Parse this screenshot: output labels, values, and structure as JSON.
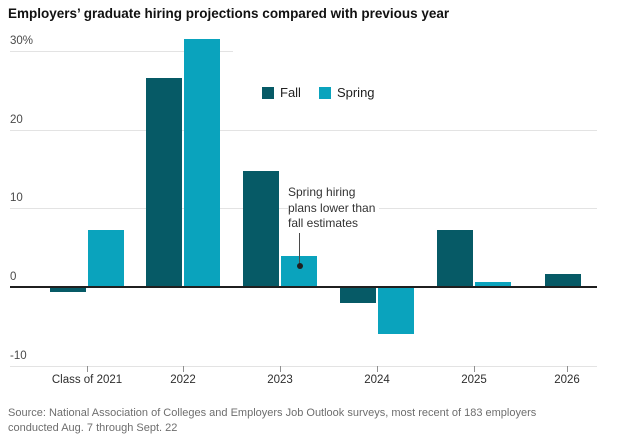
{
  "title": "Employers’ graduate hiring projections compared with previous year",
  "legend": {
    "fall_label": "Fall",
    "spring_label": "Spring"
  },
  "colors": {
    "fall": "#065a66",
    "spring": "#0aa3bd",
    "grid": "#e3e3e3",
    "zero_axis": "#1f1f1f",
    "tick": "#909090",
    "annotation_text": "#333333",
    "source_text": "#6e6e6e"
  },
  "annotation": {
    "lines": [
      "Spring hiring",
      "plans lower than",
      "fall estimates"
    ]
  },
  "y_axis": {
    "tick_labels": [
      "30%",
      "20",
      "10",
      "0",
      "-10"
    ],
    "tick_values": [
      30,
      20,
      10,
      0,
      -10
    ]
  },
  "chart_data": {
    "type": "bar",
    "title": "Employers’ graduate hiring projections compared with previous year",
    "categories": [
      "Class of 2021",
      "2022",
      "2023",
      "2024",
      "2025",
      "2026"
    ],
    "series": [
      {
        "name": "Fall",
        "values": [
          -0.5,
          26.6,
          14.7,
          -1.9,
          7.3,
          1.6
        ]
      },
      {
        "name": "Spring",
        "values": [
          7.2,
          31.6,
          3.9,
          -5.8,
          0.6,
          null
        ]
      }
    ],
    "xlabel": "",
    "ylabel": "",
    "y_unit": "%",
    "ylim": [
      -10,
      30
    ],
    "grid": true,
    "legend_position": "top-center",
    "annotation": "Spring hiring plans lower than fall estimates (points to 2023 Spring bar)"
  },
  "source": {
    "line1": "Source: National Association of Colleges and Employers Job Outlook surveys, most recent of 183 employers",
    "line2": "conducted Aug. 7 through Sept. 22"
  }
}
